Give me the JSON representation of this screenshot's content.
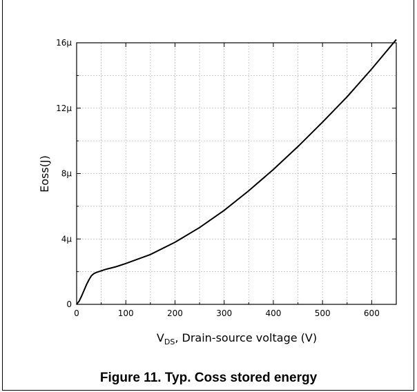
{
  "chart_data": {
    "type": "line",
    "xlabel": {
      "prefix": "V",
      "subscript": "DS",
      "suffix": ", Drain-source voltage (V)"
    },
    "ylabel": "Eoss(J)",
    "xlim": [
      0,
      650
    ],
    "ylim": [
      0,
      16
    ],
    "x_ticks": [
      0,
      100,
      200,
      300,
      400,
      500,
      600
    ],
    "y_ticks": [
      0,
      4,
      8,
      12,
      16
    ],
    "y_tick_labels": [
      "0",
      "4μ",
      "8μ",
      "12μ",
      "16μ"
    ],
    "grid": true,
    "series": [
      {
        "x": [
          0,
          5,
          10,
          15,
          20,
          25,
          30,
          35,
          40,
          50,
          60,
          80,
          100,
          150,
          200,
          250,
          300,
          350,
          400,
          450,
          500,
          550,
          600,
          650
        ],
        "y": [
          0,
          0.2,
          0.5,
          0.85,
          1.2,
          1.5,
          1.75,
          1.88,
          1.95,
          2.05,
          2.15,
          2.3,
          2.5,
          3.05,
          3.8,
          4.7,
          5.75,
          6.95,
          8.25,
          9.65,
          11.15,
          12.7,
          14.4,
          16.2
        ]
      }
    ]
  },
  "caption": "Figure 11. Typ. Coss stored energy"
}
